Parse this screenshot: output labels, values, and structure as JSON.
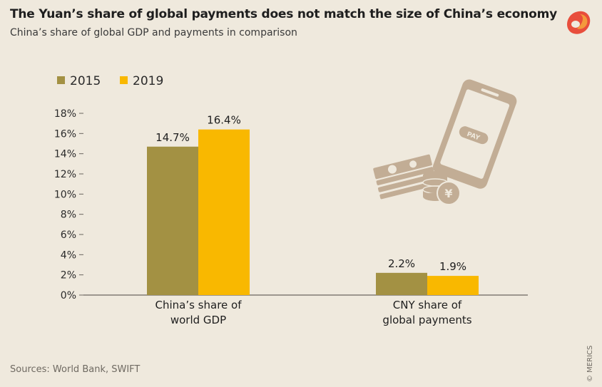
{
  "header": {
    "title": "The Yuan’s share of global payments does not match the size of China’s economy",
    "subtitle": "China’s share of global GDP and payments in comparison"
  },
  "footer": {
    "source": "Sources: World Bank, SWIFT",
    "copyright": "© MERICS"
  },
  "icons": {
    "logo": "merics-logo-icon",
    "illustration": "phone-pay-money-icon",
    "phone_label": "PAY",
    "coin_symbol": "¥"
  },
  "colors": {
    "2015": "#a39143",
    "2019": "#f9b800",
    "illustration": "#c2ad95",
    "background": "#efe9dd"
  },
  "chart_data": {
    "type": "bar",
    "categories": [
      [
        "China’s share of",
        "world GDP"
      ],
      [
        "CNY share of",
        "global payments"
      ]
    ],
    "series": [
      {
        "name": "2015",
        "values": [
          14.7,
          2.2
        ],
        "labels": [
          "14.7%",
          "2.2%"
        ]
      },
      {
        "name": "2019",
        "values": [
          16.4,
          1.9
        ],
        "labels": [
          "16.4%",
          "1.9%"
        ]
      }
    ],
    "ylim": [
      0,
      18
    ],
    "yticks": [
      0,
      2,
      4,
      6,
      8,
      10,
      12,
      14,
      16,
      18
    ],
    "ytick_labels": [
      "0%",
      "2%",
      "4%",
      "6%",
      "8%",
      "10%",
      "12%",
      "14%",
      "16%",
      "18%"
    ],
    "grid": false,
    "legend": "top-left"
  }
}
